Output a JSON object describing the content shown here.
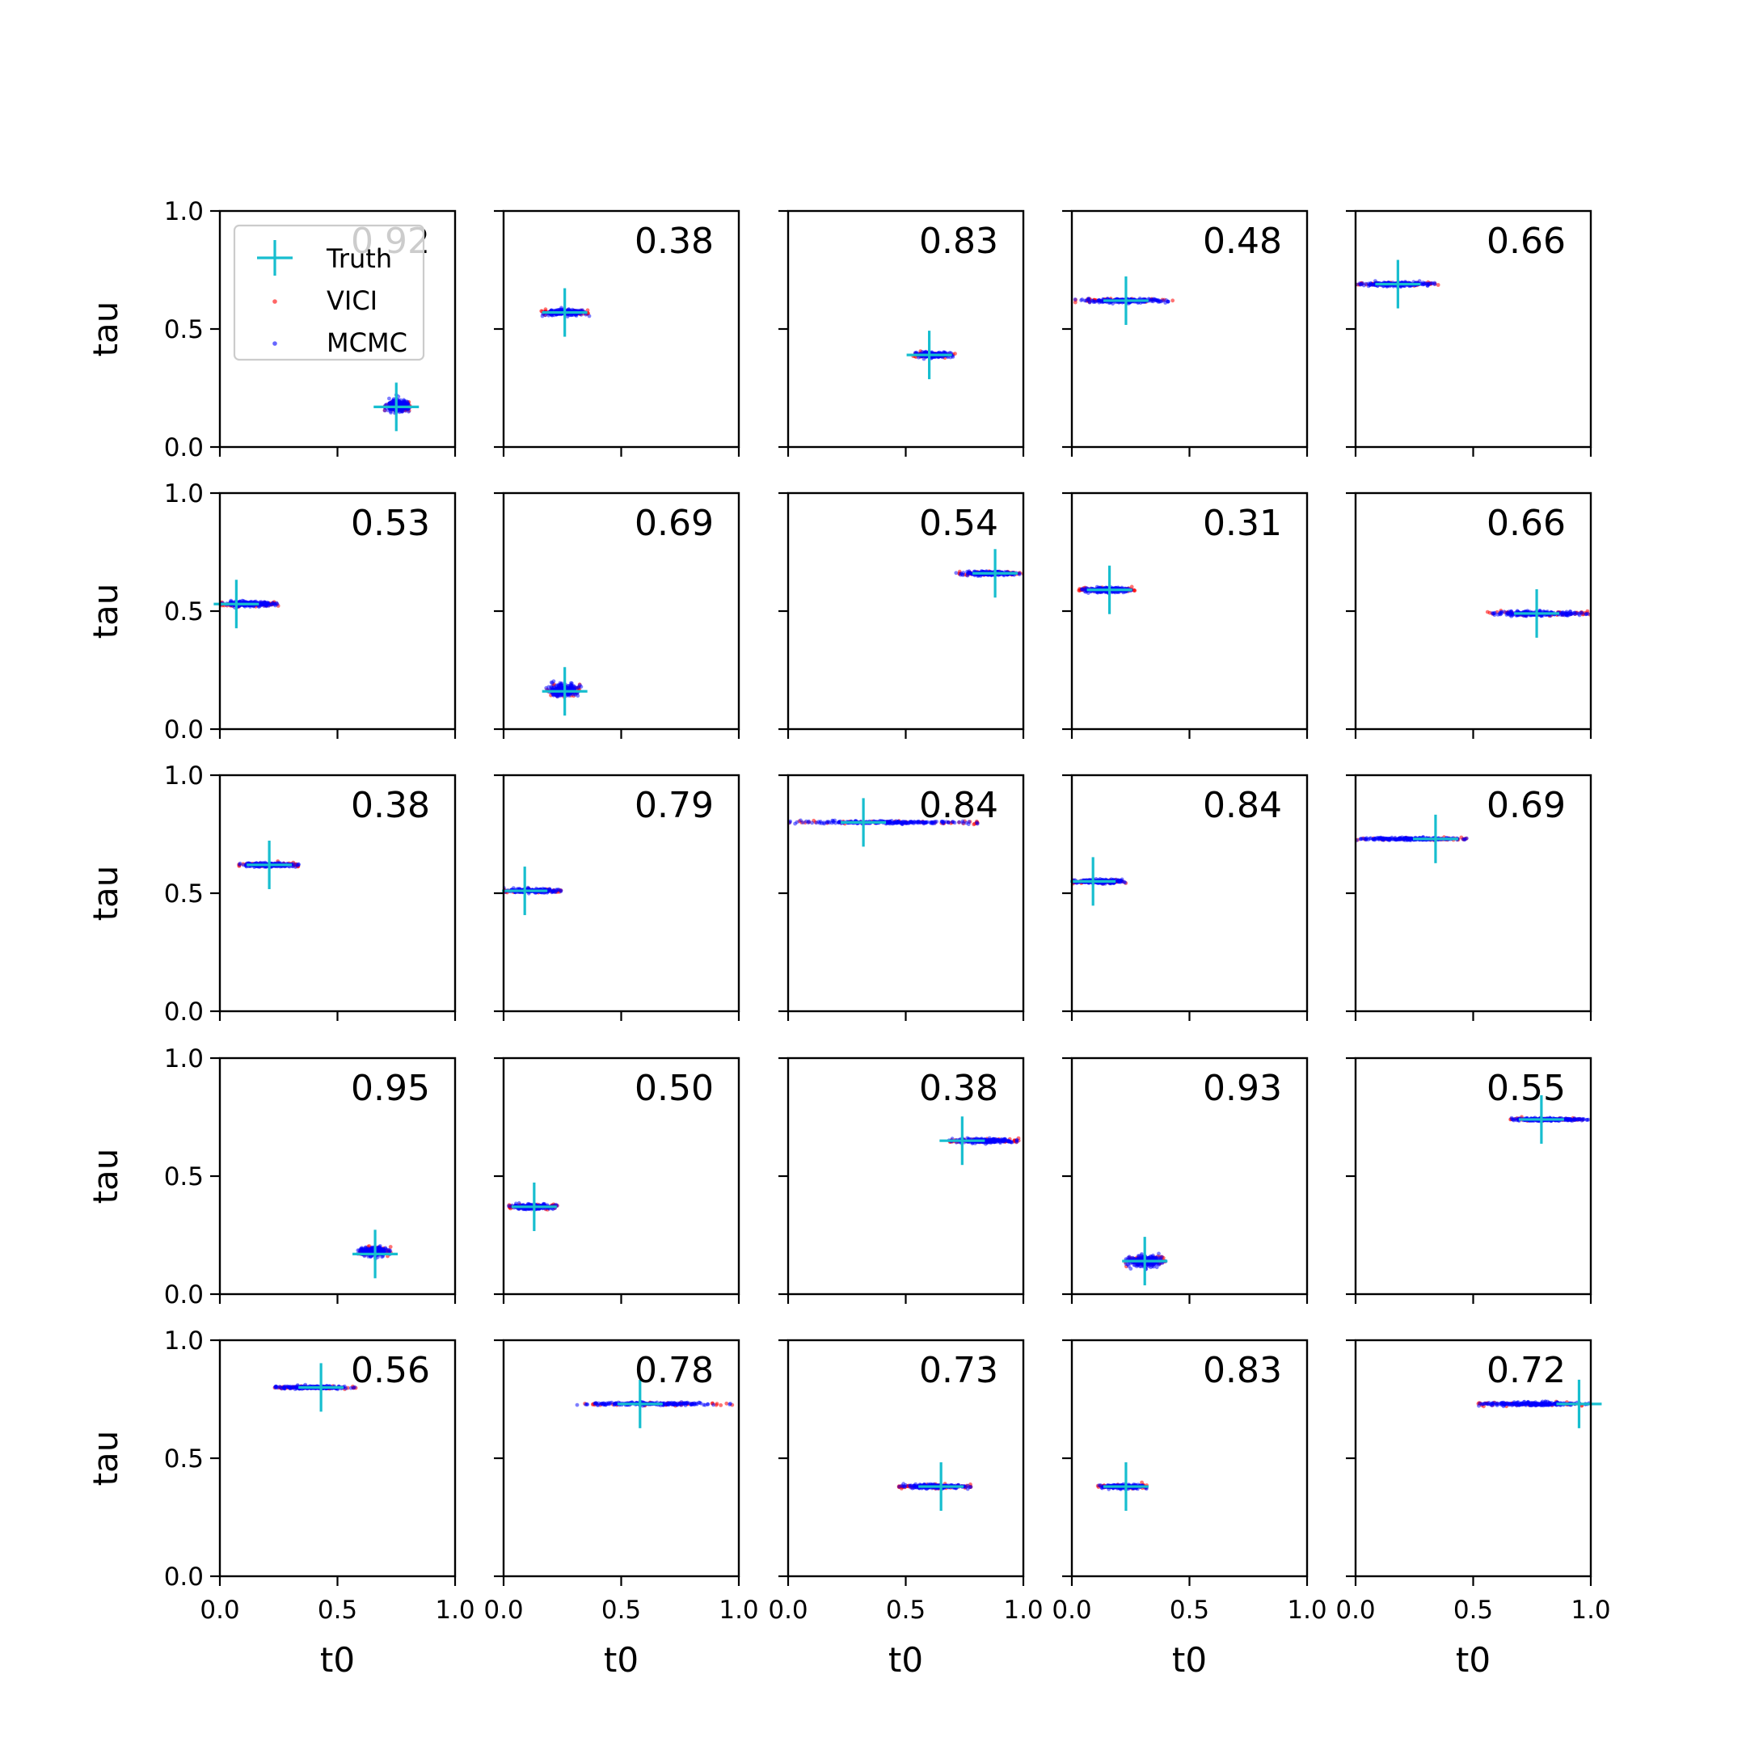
{
  "chart_data": {
    "type": "scatter",
    "grid": false,
    "rows": 5,
    "cols": 5,
    "xlabel": "t0",
    "ylabel": "tau",
    "xlim": [
      0,
      1
    ],
    "ylim": [
      0,
      1
    ],
    "xticks": [
      "0.0",
      "0.5",
      "1.0"
    ],
    "yticks": [
      "0.0",
      "0.5",
      "1.0"
    ],
    "legend": {
      "placement": "upper-left of first panel",
      "entries": [
        {
          "label": "Truth",
          "marker": "plus",
          "color": "#17becf"
        },
        {
          "label": "VICI",
          "marker": "dot",
          "color": "#ff0000"
        },
        {
          "label": "MCMC",
          "marker": "dot",
          "color": "#0000ff"
        }
      ]
    },
    "panels": [
      {
        "score": "0.92",
        "truth": [
          0.75,
          0.17
        ],
        "cluster": {
          "x": [
            0.7,
            0.81
          ],
          "y": 0.175,
          "spread": 0.012
        }
      },
      {
        "score": "0.38",
        "truth": [
          0.26,
          0.57
        ],
        "cluster": {
          "x": [
            0.16,
            0.37
          ],
          "y": 0.57,
          "spread": 0.006
        }
      },
      {
        "score": "0.83",
        "truth": [
          0.6,
          0.39
        ],
        "cluster": {
          "x": [
            0.53,
            0.71
          ],
          "y": 0.39,
          "spread": 0.005
        }
      },
      {
        "score": "0.48",
        "truth": [
          0.23,
          0.62
        ],
        "cluster": {
          "x": [
            0.0,
            0.43
          ],
          "y": 0.62,
          "spread": 0.004
        }
      },
      {
        "score": "0.66",
        "truth": [
          0.18,
          0.69
        ],
        "cluster": {
          "x": [
            0.0,
            0.36
          ],
          "y": 0.69,
          "spread": 0.004
        }
      },
      {
        "score": "0.53",
        "truth": [
          0.07,
          0.53
        ],
        "cluster": {
          "x": [
            0.0,
            0.25
          ],
          "y": 0.53,
          "spread": 0.005
        }
      },
      {
        "score": "0.69",
        "truth": [
          0.26,
          0.16
        ],
        "cluster": {
          "x": [
            0.18,
            0.33
          ],
          "y": 0.165,
          "spread": 0.012
        }
      },
      {
        "score": "0.54",
        "truth": [
          0.88,
          0.66
        ],
        "cluster": {
          "x": [
            0.71,
            1.0
          ],
          "y": 0.66,
          "spread": 0.004
        }
      },
      {
        "score": "0.31",
        "truth": [
          0.16,
          0.59
        ],
        "cluster": {
          "x": [
            0.03,
            0.27
          ],
          "y": 0.59,
          "spread": 0.005
        }
      },
      {
        "score": "0.66",
        "truth": [
          0.77,
          0.49
        ],
        "cluster": {
          "x": [
            0.55,
            1.0
          ],
          "y": 0.49,
          "spread": 0.005
        }
      },
      {
        "score": "0.38",
        "truth": [
          0.21,
          0.62
        ],
        "cluster": {
          "x": [
            0.08,
            0.34
          ],
          "y": 0.62,
          "spread": 0.004
        }
      },
      {
        "score": "0.79",
        "truth": [
          0.09,
          0.51
        ],
        "cluster": {
          "x": [
            0.0,
            0.25
          ],
          "y": 0.51,
          "spread": 0.004
        }
      },
      {
        "score": "0.84",
        "truth": [
          0.32,
          0.8
        ],
        "cluster": {
          "x": [
            0.0,
            0.81
          ],
          "y": 0.8,
          "spread": 0.003
        }
      },
      {
        "score": "0.84",
        "truth": [
          0.09,
          0.55
        ],
        "cluster": {
          "x": [
            0.0,
            0.23
          ],
          "y": 0.55,
          "spread": 0.004
        }
      },
      {
        "score": "0.69",
        "truth": [
          0.34,
          0.73
        ],
        "cluster": {
          "x": [
            0.0,
            0.48
          ],
          "y": 0.73,
          "spread": 0.003
        }
      },
      {
        "score": "0.95",
        "truth": [
          0.66,
          0.17
        ],
        "cluster": {
          "x": [
            0.58,
            0.73
          ],
          "y": 0.18,
          "spread": 0.01
        }
      },
      {
        "score": "0.50",
        "truth": [
          0.13,
          0.37
        ],
        "cluster": {
          "x": [
            0.02,
            0.23
          ],
          "y": 0.37,
          "spread": 0.005
        }
      },
      {
        "score": "0.38",
        "truth": [
          0.74,
          0.65
        ],
        "cluster": {
          "x": [
            0.68,
            0.99
          ],
          "y": 0.65,
          "spread": 0.004
        }
      },
      {
        "score": "0.93",
        "truth": [
          0.31,
          0.14
        ],
        "cluster": {
          "x": [
            0.22,
            0.4
          ],
          "y": 0.14,
          "spread": 0.012
        }
      },
      {
        "score": "0.55",
        "truth": [
          0.79,
          0.74
        ],
        "cluster": {
          "x": [
            0.64,
            1.0
          ],
          "y": 0.74,
          "spread": 0.003
        }
      },
      {
        "score": "0.56",
        "truth": [
          0.43,
          0.8
        ],
        "cluster": {
          "x": [
            0.23,
            0.58
          ],
          "y": 0.8,
          "spread": 0.003
        }
      },
      {
        "score": "0.78",
        "truth": [
          0.58,
          0.73
        ],
        "cluster": {
          "x": [
            0.3,
            0.98
          ],
          "y": 0.73,
          "spread": 0.003
        }
      },
      {
        "score": "0.73",
        "truth": [
          0.65,
          0.38
        ],
        "cluster": {
          "x": [
            0.47,
            0.78
          ],
          "y": 0.38,
          "spread": 0.004
        }
      },
      {
        "score": "0.83",
        "truth": [
          0.23,
          0.38
        ],
        "cluster": {
          "x": [
            0.11,
            0.32
          ],
          "y": 0.38,
          "spread": 0.004
        }
      },
      {
        "score": "0.72",
        "truth": [
          0.95,
          0.73
        ],
        "cluster": {
          "x": [
            0.52,
            1.0
          ],
          "y": 0.73,
          "spread": 0.004
        }
      }
    ]
  }
}
